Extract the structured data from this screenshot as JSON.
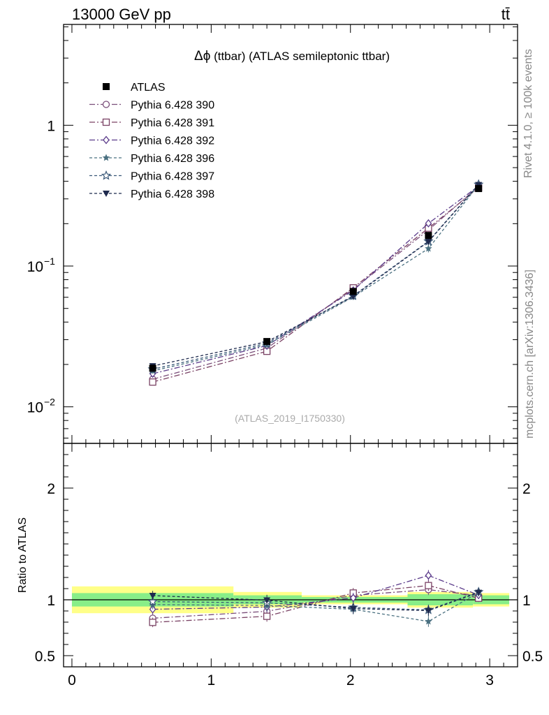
{
  "header": {
    "energy_label": "13000 GeV pp",
    "process_label": "tt̄"
  },
  "side_labels": {
    "rivet": "Rivet 4.1.0, ≥ 100k events",
    "mcplots": "mcplots.cern.ch [arXiv:1306.3436]"
  },
  "watermark": "(ATLAS_2019_I1750330)",
  "chart_data": {
    "type": "line",
    "title": "Δϕ (ttbar) (ATLAS semileptonic ttbar)",
    "title_symbol": "Δϕ",
    "title_rest": " (ttbar) (ATLAS semileptonic ttbar)",
    "xlabel": "",
    "ylabel": "",
    "ratio_ylabel": "Ratio to ATLAS",
    "xlim": [
      -0.06,
      3.2
    ],
    "ylim_log": [
      0.0055,
      5.2
    ],
    "ratio_ylim": [
      0.4,
      2.4
    ],
    "x_ticks": [
      {
        "v": 0,
        "label": "0"
      },
      {
        "v": 1,
        "label": "1"
      },
      {
        "v": 2,
        "label": "2"
      },
      {
        "v": 3,
        "label": "3"
      }
    ],
    "y_ticks": [
      {
        "v": 1,
        "label": "1",
        "exp": ""
      },
      {
        "v": 0.1,
        "label": "10",
        "exp": "−1"
      },
      {
        "v": 0.01,
        "label": "10",
        "exp": "−2"
      }
    ],
    "ratio_ticks": [
      {
        "v": 0.5,
        "label": "0.5"
      },
      {
        "v": 1,
        "label": "1"
      },
      {
        "v": 2,
        "label": "2"
      }
    ],
    "bins": [
      {
        "lo": 0.0,
        "hi": 1.16,
        "center": 0.58
      },
      {
        "lo": 1.16,
        "hi": 1.65,
        "center": 1.4
      },
      {
        "lo": 1.65,
        "hi": 2.41,
        "center": 2.02
      },
      {
        "lo": 2.41,
        "hi": 2.88,
        "center": 2.56
      },
      {
        "lo": 2.88,
        "hi": 3.14,
        "center": 2.92
      }
    ],
    "data": {
      "name": "ATLAS",
      "color": "#000000",
      "marker": "square",
      "values": [
        0.0188,
        0.0291,
        0.066,
        0.165,
        0.355
      ],
      "band_inner": [
        0.06,
        0.04,
        0.025,
        0.05,
        0.04
      ],
      "band_outer": [
        0.12,
        0.07,
        0.04,
        0.07,
        0.06
      ]
    },
    "series": [
      {
        "name": "Pythia 6.428 390",
        "color": "#7a4e7a",
        "marker": "circle-open",
        "dash": "8,3,2,3",
        "values": [
          0.0157,
          0.0261,
          0.0686,
          0.18,
          0.368
        ],
        "errors": [
          0.0008,
          0.0014,
          0.003,
          0.008,
          0.012
        ]
      },
      {
        "name": "Pythia 6.428 391",
        "color": "#7a4264",
        "marker": "square-open",
        "dash": "8,3,2,3",
        "values": [
          0.015,
          0.0248,
          0.07,
          0.186,
          0.36
        ],
        "errors": [
          0.0008,
          0.0014,
          0.003,
          0.008,
          0.012
        ]
      },
      {
        "name": "Pythia 6.428 392",
        "color": "#5a3a8a",
        "marker": "diamond-open",
        "dash": "8,3,2,3",
        "values": [
          0.0172,
          0.0272,
          0.0671,
          0.201,
          0.37
        ],
        "errors": [
          0.0008,
          0.0014,
          0.003,
          0.008,
          0.012
        ]
      },
      {
        "name": "Pythia 6.428 396",
        "color": "#4a7080",
        "marker": "star-filled",
        "dash": "4,3",
        "values": [
          0.018,
          0.0276,
          0.0604,
          0.133,
          0.378
        ],
        "errors": [
          0.0008,
          0.0014,
          0.003,
          0.008,
          0.012
        ]
      },
      {
        "name": "Pythia 6.428 397",
        "color": "#3a5878",
        "marker": "star-open",
        "dash": "4,3",
        "values": [
          0.0185,
          0.0283,
          0.0615,
          0.15,
          0.38
        ],
        "errors": [
          0.0008,
          0.0014,
          0.003,
          0.008,
          0.012
        ]
      },
      {
        "name": "Pythia 6.428 398",
        "color": "#1f2a4e",
        "marker": "triangle-down",
        "dash": "4,3",
        "values": [
          0.0195,
          0.029,
          0.0608,
          0.149,
          0.378
        ],
        "errors": [
          0.0008,
          0.0014,
          0.003,
          0.008,
          0.012
        ]
      }
    ]
  }
}
